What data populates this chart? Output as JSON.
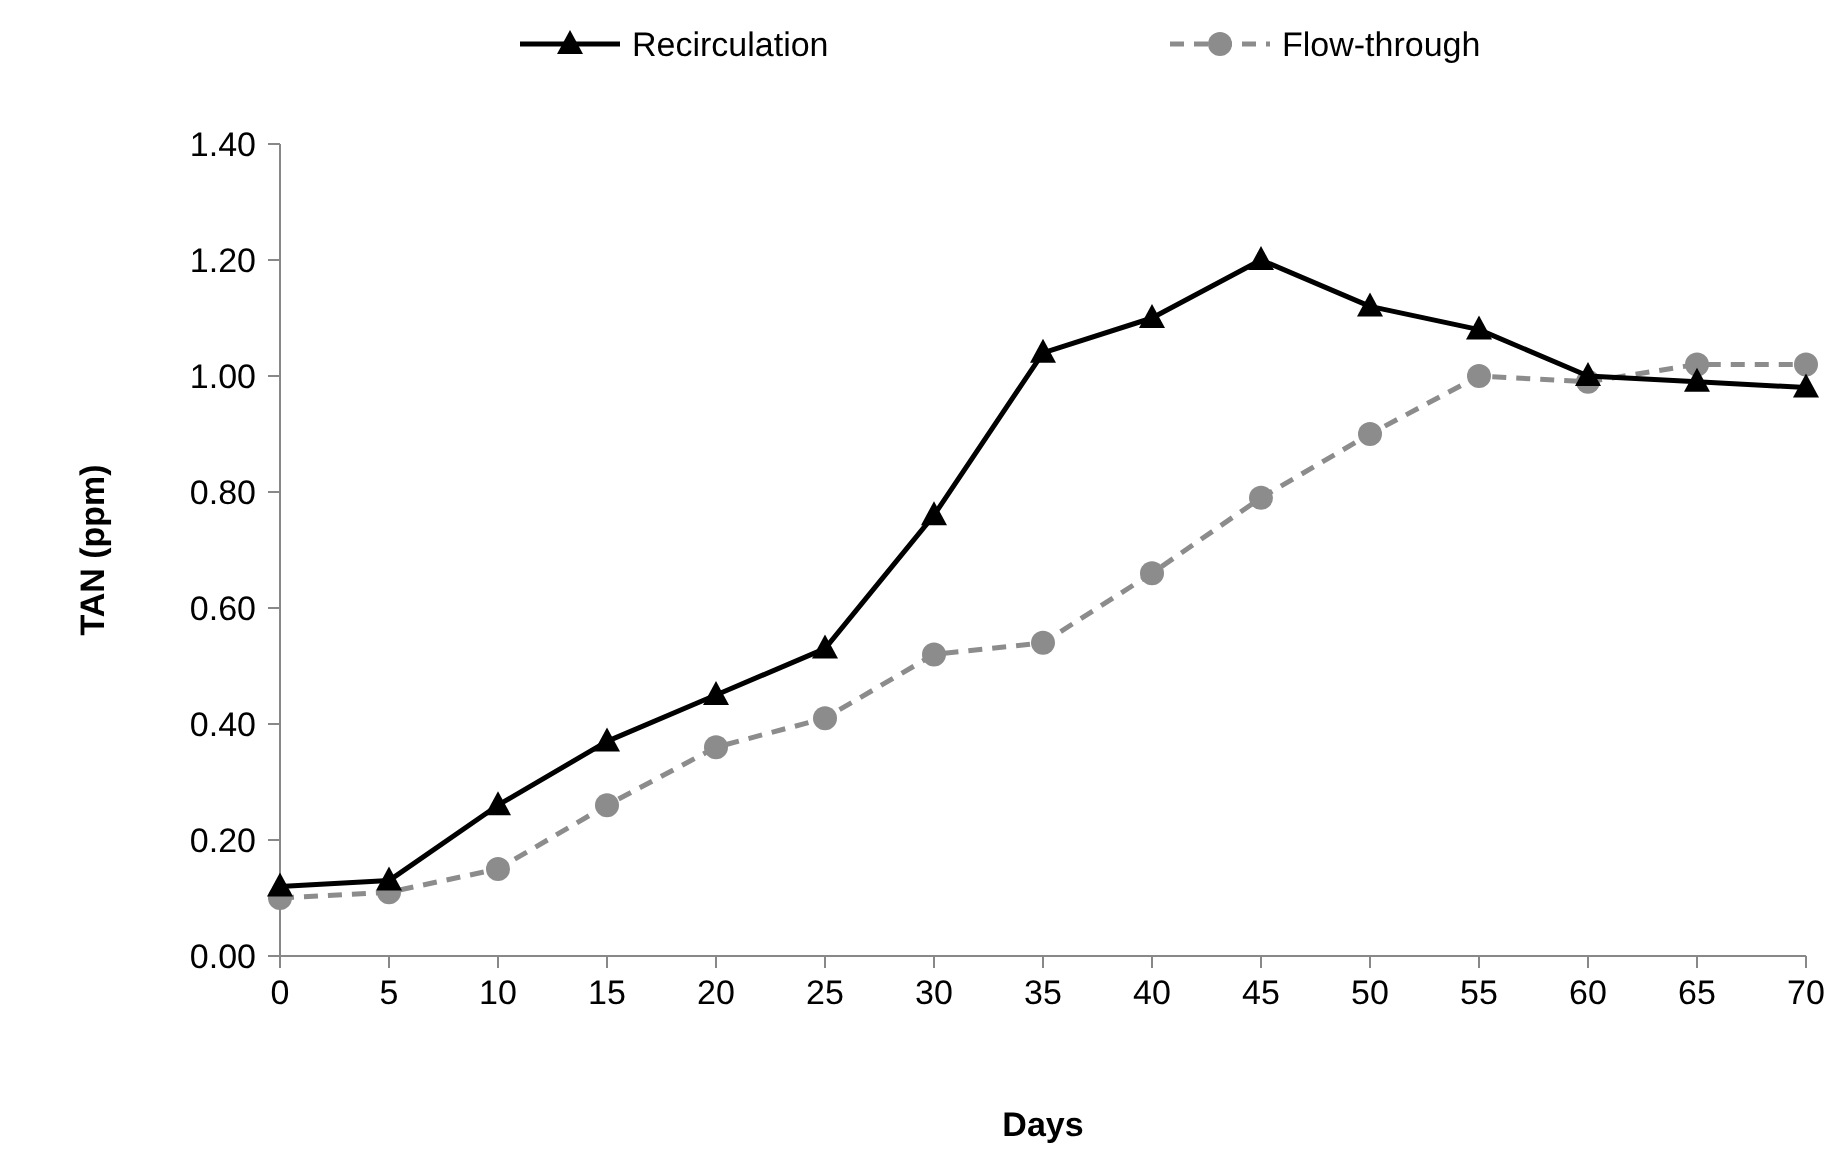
{
  "chart_data": {
    "type": "line",
    "xlabel": "Days",
    "ylabel": "TAN (ppm)",
    "x": [
      0,
      5,
      10,
      15,
      20,
      25,
      30,
      35,
      40,
      45,
      50,
      55,
      60,
      65,
      70
    ],
    "xlim": [
      0,
      70
    ],
    "xticks": [
      0,
      5,
      10,
      15,
      20,
      25,
      30,
      35,
      40,
      45,
      50,
      55,
      60,
      65,
      70
    ],
    "ylim": [
      0,
      1.4
    ],
    "yticks": [
      {
        "value": 0,
        "label": "0.00"
      },
      {
        "value": 0.2,
        "label": "0.20"
      },
      {
        "value": 0.4,
        "label": "0.40"
      },
      {
        "value": 0.6,
        "label": "0.60"
      },
      {
        "value": 0.8,
        "label": "0.80"
      },
      {
        "value": 1,
        "label": "1.00"
      },
      {
        "value": 1.2,
        "label": "1.20"
      },
      {
        "value": 1.4,
        "label": "1.40"
      }
    ],
    "grid": false,
    "legend": "top",
    "series": [
      {
        "name": "Recirculation",
        "color": "#000000",
        "marker": "triangle",
        "line_style": "solid",
        "values": [
          0.12,
          0.13,
          0.26,
          0.37,
          0.45,
          0.53,
          0.76,
          1.04,
          1.1,
          1.2,
          1.12,
          1.08,
          1.0,
          0.99,
          0.98
        ]
      },
      {
        "name": "Flow-through",
        "color": "#8c8c8c",
        "marker": "circle",
        "line_style": "dashed",
        "values": [
          0.1,
          0.11,
          0.15,
          0.26,
          0.36,
          0.41,
          0.52,
          0.54,
          0.66,
          0.79,
          0.9,
          1.0,
          0.99,
          1.02,
          1.02
        ]
      }
    ]
  }
}
